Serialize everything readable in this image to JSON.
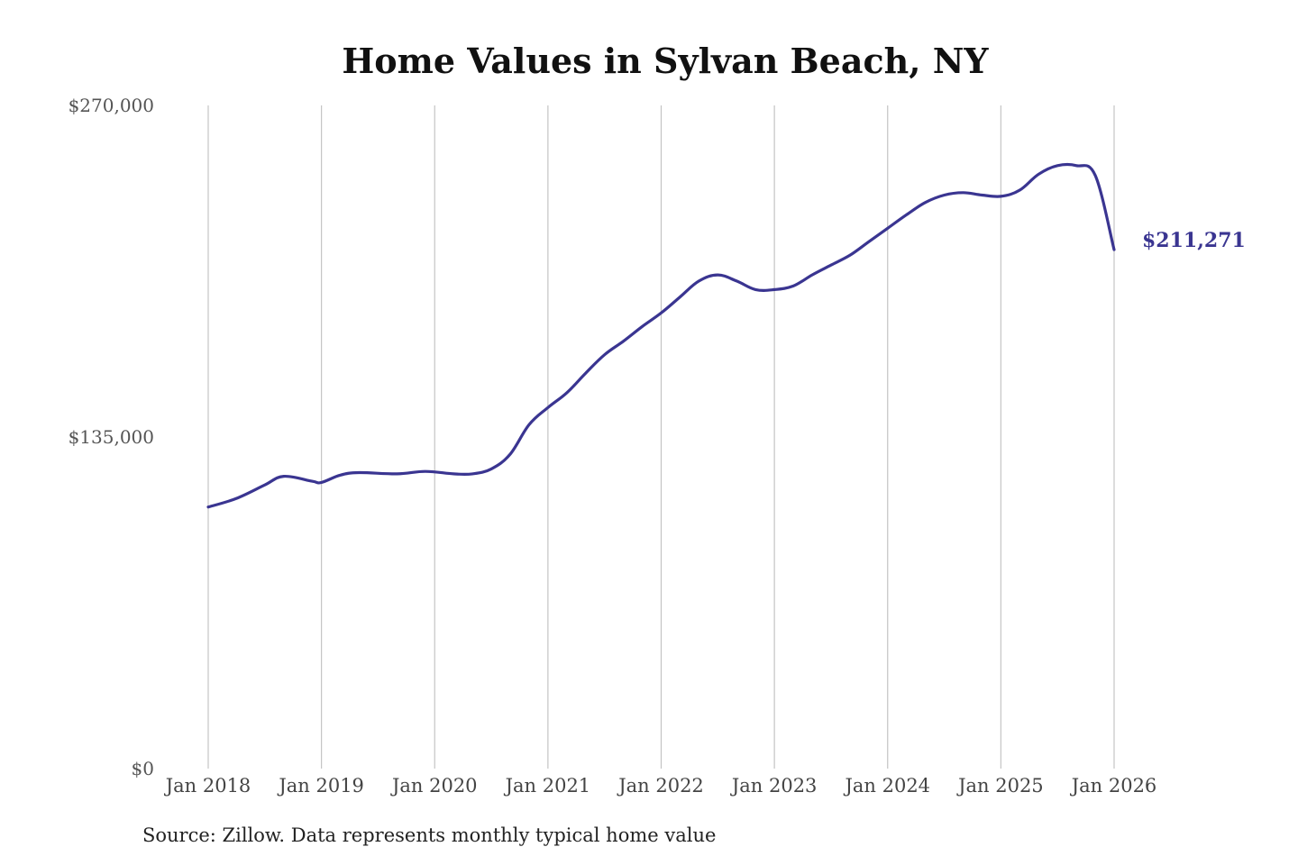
{
  "colors": {
    "line": "#3a3591",
    "grid": "#c4c4c4",
    "title": "#111111",
    "tick": "#555555"
  },
  "source_text": "Source: Zillow. Data represents monthly typical home value",
  "chart_data": {
    "type": "line",
    "title": "Home Values in Sylvan Beach, NY",
    "xlabel": "",
    "ylabel": "",
    "ylim": [
      0,
      270000
    ],
    "y_ticks": [
      {
        "value": 270000,
        "label": "$270,000"
      },
      {
        "value": 135000,
        "label": "$135,000"
      },
      {
        "value": 0,
        "label": "$0"
      }
    ],
    "x_ticks": [
      {
        "value": "2018-01",
        "label": "Jan 2018"
      },
      {
        "value": "2019-01",
        "label": "Jan 2019"
      },
      {
        "value": "2020-01",
        "label": "Jan 2020"
      },
      {
        "value": "2021-01",
        "label": "Jan 2021"
      },
      {
        "value": "2022-01",
        "label": "Jan 2022"
      },
      {
        "value": "2023-01",
        "label": "Jan 2023"
      },
      {
        "value": "2024-01",
        "label": "Jan 2024"
      },
      {
        "value": "2025-01",
        "label": "Jan 2025"
      },
      {
        "value": "2026-01",
        "label": "Jan 2026"
      }
    ],
    "grid": "vertical",
    "end_label": "$211,271",
    "series": [
      {
        "x": [
          "2018-01",
          "2018-04",
          "2018-07",
          "2018-09",
          "2018-12",
          "2019-01",
          "2019-03",
          "2019-05",
          "2019-09",
          "2019-12",
          "2020-03",
          "2020-05",
          "2020-07",
          "2020-09",
          "2020-11",
          "2021-01",
          "2021-03",
          "2021-05",
          "2021-07",
          "2021-09",
          "2021-11",
          "2022-01",
          "2022-03",
          "2022-05",
          "2022-07",
          "2022-09",
          "2022-11",
          "2023-01",
          "2023-03",
          "2023-05",
          "2023-07",
          "2023-09",
          "2023-11",
          "2024-01",
          "2024-03",
          "2024-05",
          "2024-07",
          "2024-09",
          "2024-11",
          "2025-01",
          "2025-03",
          "2025-05",
          "2025-07",
          "2025-09",
          "2025-11",
          "2026-01"
        ],
        "values": [
          106500,
          110000,
          115500,
          119000,
          117000,
          116500,
          119500,
          120500,
          120000,
          121000,
          120000,
          120000,
          122000,
          128000,
          140000,
          147000,
          153000,
          161000,
          168500,
          174000,
          180000,
          185500,
          192000,
          198500,
          201000,
          198500,
          195000,
          195000,
          196500,
          201000,
          205000,
          209000,
          214500,
          220000,
          225500,
          230500,
          233500,
          234500,
          233500,
          233000,
          235500,
          242000,
          245500,
          245500,
          241500,
          211271
        ]
      }
    ]
  }
}
